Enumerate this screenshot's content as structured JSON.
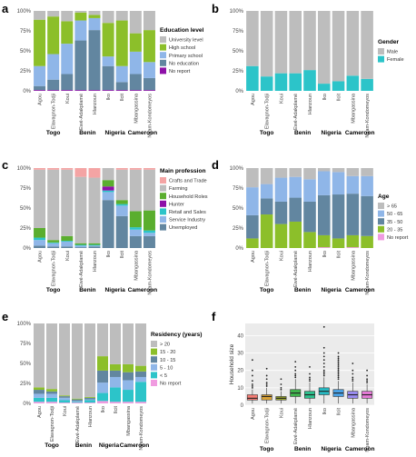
{
  "colors": {
    "grey": "#bdbdbd",
    "panelBg": "#ebebeb",
    "grid": "#ffffff"
  },
  "chart_data": [
    {
      "panel": "a",
      "type": "bar",
      "stacked": true,
      "categories": [
        "Agou",
        "Elavagnon-Todji",
        "Koui",
        "Ewé-Adakplamé",
        "Hlanzoun",
        "Iko",
        "Ilcit",
        "Mbangassina",
        "Ngam-Kondomeyos"
      ],
      "groups": [
        {
          "name": "Togo",
          "span": [
            0,
            2
          ]
        },
        {
          "name": "Benin",
          "span": [
            3,
            4
          ]
        },
        {
          "name": "Nigeria",
          "span": [
            5,
            6
          ]
        },
        {
          "name": "Cameroon",
          "span": [
            7,
            8
          ]
        }
      ],
      "yticks": [
        "0%",
        "25%",
        "50%",
        "75%",
        "100%"
      ],
      "legend_title": "Education level",
      "series": [
        {
          "name": "No report",
          "color": "#8e10a8",
          "values": [
            1,
            1,
            1,
            1,
            1,
            1,
            1,
            1,
            1
          ]
        },
        {
          "name": "No education",
          "color": "#6286a0",
          "values": [
            5,
            13,
            20,
            62,
            75,
            30,
            10,
            20,
            15
          ]
        },
        {
          "name": "Primary school",
          "color": "#8fb6e8",
          "values": [
            25,
            32,
            38,
            25,
            15,
            12,
            20,
            28,
            20
          ]
        },
        {
          "name": "High school",
          "color": "#8cbf2a",
          "values": [
            58,
            47,
            28,
            10,
            4,
            42,
            57,
            23,
            40
          ]
        },
        {
          "name": "University level",
          "color": "#bdbdbd",
          "values": [
            11,
            7,
            13,
            2,
            5,
            15,
            12,
            28,
            24
          ]
        }
      ]
    },
    {
      "panel": "b",
      "type": "bar",
      "stacked": true,
      "categories": [
        "Agou",
        "Elavagnon-Todji",
        "Koui",
        "Ewé-Adakplamé",
        "Hlanzoun",
        "Iko",
        "Ilcit",
        "Mbangassina",
        "Ngam-Kondomeyos"
      ],
      "groups": [
        {
          "name": "Togo",
          "span": [
            0,
            2
          ]
        },
        {
          "name": "Benin",
          "span": [
            3,
            4
          ]
        },
        {
          "name": "Nigeria",
          "span": [
            5,
            6
          ]
        },
        {
          "name": "Cameroon",
          "span": [
            7,
            8
          ]
        }
      ],
      "yticks": [
        "0%",
        "25%",
        "50%",
        "75%",
        "100%"
      ],
      "legend_title": "Gender",
      "series": [
        {
          "name": "Female",
          "color": "#2cc4c9",
          "values": [
            31,
            18,
            22,
            22,
            26,
            9,
            12,
            19,
            15
          ]
        },
        {
          "name": "Male",
          "color": "#bdbdbd",
          "values": [
            69,
            82,
            78,
            78,
            74,
            91,
            88,
            81,
            85
          ]
        }
      ]
    },
    {
      "panel": "c",
      "type": "bar",
      "stacked": true,
      "categories": [
        "Agou",
        "Elavagnon-Todji",
        "Koui",
        "Ewé-Adakplamé",
        "Hlanzoun",
        "Iko",
        "Ilcit",
        "Mbangassina",
        "Ngam-Kondomeyos"
      ],
      "groups": [
        {
          "name": "Togo",
          "span": [
            0,
            2
          ]
        },
        {
          "name": "Benin",
          "span": [
            3,
            4
          ]
        },
        {
          "name": "Nigeria",
          "span": [
            5,
            6
          ]
        },
        {
          "name": "Cameroon",
          "span": [
            7,
            8
          ]
        }
      ],
      "yticks": [
        "0%",
        "25%",
        "50%",
        "75%",
        "100%"
      ],
      "legend_title": "Main profession",
      "series": [
        {
          "name": "Unemployed",
          "color": "#6286a0",
          "values": [
            3,
            2,
            2,
            1,
            2,
            60,
            40,
            15,
            15
          ]
        },
        {
          "name": "Service Industry",
          "color": "#8fb6e8",
          "values": [
            7,
            4,
            6,
            2,
            1,
            10,
            13,
            8,
            4
          ]
        },
        {
          "name": "Retail and Sales",
          "color": "#2cc4c9",
          "values": [
            3,
            1,
            1,
            1,
            1,
            2,
            2,
            3,
            3
          ]
        },
        {
          "name": "Hunter",
          "color": "#8e10a8",
          "values": [
            0,
            0,
            0,
            0,
            0,
            5,
            0,
            0,
            0
          ]
        },
        {
          "name": "Household Roles",
          "color": "#5aae2e",
          "values": [
            12,
            3,
            6,
            2,
            2,
            8,
            5,
            20,
            25
          ]
        },
        {
          "name": "Farming",
          "color": "#bdbdbd",
          "values": [
            73,
            88,
            83,
            83,
            82,
            15,
            38,
            52,
            51
          ]
        },
        {
          "name": "Crafts and Trade",
          "color": "#f4a4a4",
          "values": [
            2,
            2,
            2,
            11,
            12,
            0,
            2,
            2,
            2
          ]
        }
      ]
    },
    {
      "panel": "d",
      "type": "bar",
      "stacked": true,
      "categories": [
        "Agou",
        "Elavagnon-Todji",
        "Koui",
        "Ewé-Adakplamé",
        "Hlanzoun",
        "Iko",
        "Ilcit",
        "Mbangassina",
        "Ngam-Kondomeyos"
      ],
      "groups": [
        {
          "name": "Togo",
          "span": [
            0,
            2
          ]
        },
        {
          "name": "Benin",
          "span": [
            3,
            4
          ]
        },
        {
          "name": "Nigeria",
          "span": [
            5,
            6
          ]
        },
        {
          "name": "Cameroon",
          "span": [
            7,
            8
          ]
        }
      ],
      "yticks": [
        "0%",
        "25%",
        "50%",
        "75%",
        "100%"
      ],
      "legend_title": "Age",
      "series": [
        {
          "name": "No report",
          "color": "#f09be0",
          "values": [
            0,
            0,
            0,
            0,
            0,
            1,
            0,
            1,
            0
          ]
        },
        {
          "name": "20 - 35",
          "color": "#8cbf2a",
          "values": [
            12,
            42,
            30,
            33,
            20,
            15,
            12,
            15,
            15
          ]
        },
        {
          "name": "35 - 50",
          "color": "#6286a0",
          "values": [
            29,
            20,
            28,
            30,
            38,
            50,
            55,
            52,
            50
          ]
        },
        {
          "name": "50 - 65",
          "color": "#8fb6e8",
          "values": [
            35,
            18,
            30,
            26,
            28,
            30,
            28,
            22,
            25
          ]
        },
        {
          "name": "> 65",
          "color": "#bdbdbd",
          "values": [
            24,
            20,
            12,
            11,
            14,
            4,
            5,
            10,
            10
          ]
        }
      ]
    },
    {
      "panel": "e",
      "type": "bar",
      "stacked": true,
      "categories": [
        "Agou",
        "Elavagnon-Todji",
        "Koui",
        "Ewé-Adakplamé",
        "Hlanzoun",
        "Iko",
        "Ilcit",
        "Mbangassina",
        "Ngam-Kondomeyos"
      ],
      "groups": [
        {
          "name": "Togo",
          "span": [
            0,
            2
          ]
        },
        {
          "name": "Benin",
          "span": [
            3,
            4
          ]
        },
        {
          "name": "Nigeria",
          "span": [
            5,
            6
          ]
        },
        {
          "name": "Cameroon",
          "span": [
            7,
            8
          ]
        }
      ],
      "yticks": [
        "0%",
        "25%",
        "50%",
        "75%",
        "100%"
      ],
      "legend_title": "Residency (years)",
      "series": [
        {
          "name": "No report",
          "color": "#f09be0",
          "values": [
            2,
            2,
            1,
            1,
            1,
            3,
            2,
            2,
            2
          ]
        },
        {
          "name": "< 5",
          "color": "#2cc4c9",
          "values": [
            5,
            5,
            3,
            1,
            3,
            10,
            18,
            15,
            25
          ]
        },
        {
          "name": "5 - 10",
          "color": "#8fb6e8",
          "values": [
            5,
            5,
            3,
            1,
            1,
            13,
            13,
            12,
            6
          ]
        },
        {
          "name": "10 - 15",
          "color": "#6286a0",
          "values": [
            5,
            3,
            2,
            2,
            2,
            15,
            8,
            10,
            7
          ]
        },
        {
          "name": "15 - 20",
          "color": "#8cbf2a",
          "values": [
            3,
            3,
            1,
            1,
            1,
            18,
            8,
            10,
            7
          ]
        },
        {
          "name": "> 20",
          "color": "#bdbdbd",
          "values": [
            80,
            82,
            90,
            94,
            92,
            41,
            51,
            51,
            53
          ]
        }
      ]
    },
    {
      "panel": "f",
      "type": "box",
      "categories": [
        "Agou",
        "Elavagnon-Todji",
        "Koui",
        "Ewé-Adakplamé",
        "Hlanzoun",
        "Iko",
        "Ilcit",
        "Mbangassina",
        "Ngam-Kondomeyos"
      ],
      "groups": [
        {
          "name": "Togo",
          "span": [
            0,
            2
          ]
        },
        {
          "name": "Benin",
          "span": [
            3,
            4
          ]
        },
        {
          "name": "Nigeria",
          "span": [
            5,
            6
          ]
        },
        {
          "name": "Cameroon",
          "span": [
            7,
            8
          ]
        }
      ],
      "ylabel": "Household size",
      "ylim": [
        0,
        47
      ],
      "yticks": [
        0,
        10,
        20,
        30,
        40
      ],
      "boxes": [
        {
          "color": "#f47b73",
          "q1": 3,
          "median": 4,
          "q3": 6,
          "whisker_low": 1,
          "whisker_high": 9,
          "outliers": [
            10,
            11,
            12,
            14,
            17,
            20,
            26
          ]
        },
        {
          "color": "#d9a236",
          "q1": 3,
          "median": 5,
          "q3": 6,
          "whisker_low": 1,
          "whisker_high": 10,
          "outliers": [
            11,
            12,
            13,
            15,
            17,
            21
          ]
        },
        {
          "color": "#9aa926",
          "q1": 3,
          "median": 4,
          "q3": 5,
          "whisker_low": 1,
          "whisker_high": 8,
          "outliers": [
            9,
            10,
            12,
            15
          ]
        },
        {
          "color": "#3fb54c",
          "q1": 5,
          "median": 7,
          "q3": 9,
          "whisker_low": 1,
          "whisker_high": 15,
          "outliers": [
            16,
            17,
            18,
            20,
            22,
            25
          ]
        },
        {
          "color": "#2ebf8c",
          "q1": 4,
          "median": 6,
          "q3": 8,
          "whisker_low": 1,
          "whisker_high": 13,
          "outliers": [
            14,
            15,
            16,
            18,
            22
          ]
        },
        {
          "color": "#27b9c2",
          "q1": 6,
          "median": 8,
          "q3": 10,
          "whisker_low": 1,
          "whisker_high": 16,
          "outliers": [
            17,
            18,
            19,
            20,
            22,
            24,
            26,
            28,
            30,
            33,
            45
          ]
        },
        {
          "color": "#4aa3e8",
          "q1": 5,
          "median": 7,
          "q3": 9,
          "whisker_low": 1,
          "whisker_high": 14,
          "outliers": [
            15,
            16,
            17,
            18,
            19,
            20,
            21,
            22,
            23,
            24,
            25,
            26,
            27,
            28,
            30
          ]
        },
        {
          "color": "#9a8cf0",
          "q1": 4,
          "median": 6,
          "q3": 8,
          "whisker_low": 1,
          "whisker_high": 13,
          "outliers": [
            14,
            15,
            16,
            18,
            20,
            24
          ]
        },
        {
          "color": "#e47ad6",
          "q1": 4,
          "median": 6,
          "q3": 8,
          "whisker_low": 1,
          "whisker_high": 12,
          "outliers": [
            13,
            14,
            15,
            17,
            20
          ]
        }
      ]
    }
  ]
}
